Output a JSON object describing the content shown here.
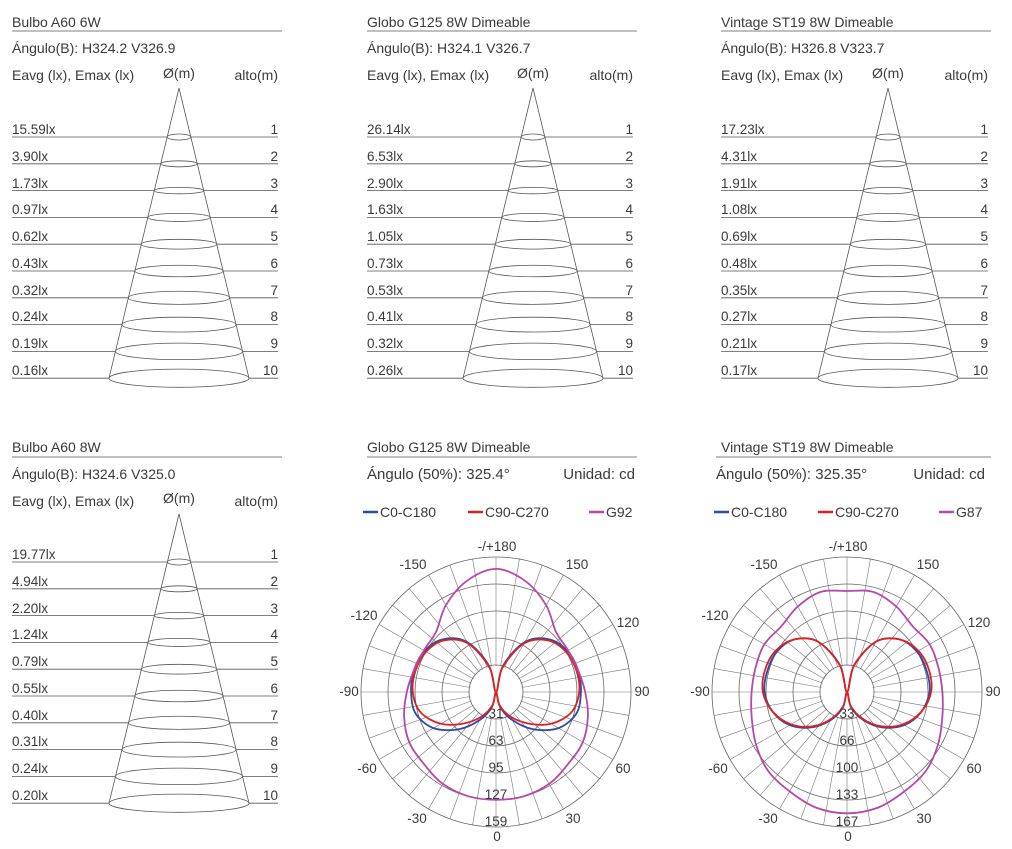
{
  "panels": [
    {
      "title": "Bulbo A60 6W",
      "angle": "Ángulo(B): H324.2 V326.9",
      "col_left": "Eavg (lx), Emax (lx)",
      "col_mid": "Ø(m)",
      "col_right": "alto(m)",
      "values": [
        "15.59lx",
        "3.90lx",
        "1.73lx",
        "0.97lx",
        "0.62lx",
        "0.43lx",
        "0.32lx",
        "0.24lx",
        "0.19lx",
        "0.16lx"
      ],
      "heights": [
        "1",
        "2",
        "3",
        "4",
        "5",
        "6",
        "7",
        "8",
        "9",
        "10"
      ]
    },
    {
      "title": "Globo G125 8W Dimeable",
      "angle": "Ángulo(B): H324.1 V326.7",
      "col_left": "Eavg (lx), Emax (lx)",
      "col_mid": "Ø(m)",
      "col_right": "alto(m)",
      "values": [
        "26.14lx",
        "6.53lx",
        "2.90lx",
        "1.63lx",
        "1.05lx",
        "0.73lx",
        "0.53lx",
        "0.41lx",
        "0.32lx",
        "0.26lx"
      ],
      "heights": [
        "1",
        "2",
        "3",
        "4",
        "5",
        "6",
        "7",
        "8",
        "9",
        "10"
      ]
    },
    {
      "title": "Vintage ST19 8W Dimeable",
      "angle": "Ángulo(B): H326.8 V323.7",
      "col_left": "Eavg (lx), Emax (lx)",
      "col_mid": "Ø(m)",
      "col_right": "alto(m)",
      "values": [
        "17.23lx",
        "4.31lx",
        "1.91lx",
        "1.08lx",
        "0.69lx",
        "0.48lx",
        "0.35lx",
        "0.27lx",
        "0.21lx",
        "0.17lx"
      ],
      "heights": [
        "1",
        "2",
        "3",
        "4",
        "5",
        "6",
        "7",
        "8",
        "9",
        "10"
      ]
    },
    {
      "title": "Bulbo A60 8W",
      "angle": "Ángulo(B): H324.6 V325.0",
      "col_left": "Eavg (lx), Emax (lx)",
      "col_mid": "Ø(m)",
      "col_right": "alto(m)",
      "values": [
        "19.77lx",
        "4.94lx",
        "2.20lx",
        "1.24lx",
        "0.79lx",
        "0.55lx",
        "0.40lx",
        "0.31lx",
        "0.24lx",
        "0.20lx"
      ],
      "heights": [
        "1",
        "2",
        "3",
        "4",
        "5",
        "6",
        "7",
        "8",
        "9",
        "10"
      ]
    }
  ],
  "polar_panels": [
    {
      "title": "Globo G125 8W Dimeable",
      "angle": "Ángulo (50%): 325.4°",
      "unit": "Unidad: cd",
      "legend": [
        "C0-C180",
        "C90-C270",
        "G92"
      ],
      "radial_labels": [
        "31",
        "63",
        "95",
        "127",
        "159"
      ],
      "angle_labels": [
        "-/+180",
        "150",
        "120",
        "90",
        "60",
        "30",
        "0",
        "-30",
        "-60",
        "-90",
        "-120",
        "-150"
      ]
    },
    {
      "title": "Vintage ST19 8W Dimeable",
      "angle": "Ángulo (50%): 325.35°",
      "unit": "Unidad: cd",
      "legend": [
        "C0-C180",
        "C90-C270",
        "G87"
      ],
      "radial_labels": [
        "33",
        "66",
        "100",
        "133",
        "167"
      ],
      "angle_labels": [
        "-/+180",
        "150",
        "120",
        "90",
        "60",
        "30",
        "0",
        "-30",
        "-60",
        "-90",
        "-120",
        "-150"
      ]
    }
  ],
  "chart_data": [
    {
      "type": "line",
      "title": "Globo G125 8W Dimeable",
      "coordinate_system": "polar",
      "unit": "cd",
      "r_ticks": [
        31,
        63,
        95,
        127,
        159
      ],
      "theta": [
        0,
        15,
        30,
        45,
        60,
        75,
        90,
        105,
        120,
        135,
        150,
        165,
        180,
        195,
        210,
        225,
        240,
        255,
        270,
        285,
        300,
        315,
        330,
        345
      ],
      "series": [
        {
          "name": "C0-C180",
          "color": "#2e4aa6",
          "values": [
            0,
            18,
            38,
            62,
            85,
            98,
            100,
            100,
            97,
            88,
            68,
            32,
            0,
            32,
            68,
            88,
            97,
            100,
            100,
            98,
            85,
            62,
            38,
            18
          ]
        },
        {
          "name": "C90-C270",
          "color": "#e02020",
          "values": [
            0,
            16,
            33,
            52,
            75,
            92,
            98,
            98,
            95,
            86,
            66,
            30,
            0,
            30,
            66,
            86,
            95,
            98,
            98,
            92,
            75,
            52,
            33,
            16
          ]
        },
        {
          "name": "G92",
          "color": "#b548a8",
          "values": [
            127,
            127,
            125,
            120,
            118,
            112,
            105,
            100,
            98,
            100,
            118,
            135,
            145,
            135,
            118,
            100,
            98,
            100,
            105,
            112,
            118,
            120,
            125,
            127
          ]
        }
      ]
    },
    {
      "type": "line",
      "title": "Vintage ST19 8W Dimeable",
      "coordinate_system": "polar",
      "unit": "cd",
      "r_ticks": [
        33,
        66,
        100,
        133,
        167
      ],
      "theta": [
        0,
        15,
        30,
        45,
        60,
        75,
        90,
        105,
        120,
        135,
        150,
        165,
        180,
        195,
        210,
        225,
        240,
        255,
        270,
        285,
        300,
        315,
        330,
        345
      ],
      "series": [
        {
          "name": "C0-C180",
          "color": "#2e4aa6",
          "values": [
            0,
            20,
            40,
            62,
            82,
            95,
            102,
            102,
            100,
            92,
            72,
            35,
            0,
            35,
            72,
            92,
            100,
            102,
            102,
            95,
            82,
            62,
            40,
            20
          ]
        },
        {
          "name": "C90-C270",
          "color": "#e02020",
          "values": [
            0,
            18,
            38,
            60,
            80,
            95,
            104,
            105,
            102,
            92,
            72,
            34,
            0,
            34,
            72,
            92,
            102,
            105,
            104,
            95,
            80,
            60,
            38,
            18
          ]
        },
        {
          "name": "G87",
          "color": "#b548a8",
          "values": [
            150,
            148,
            142,
            138,
            130,
            122,
            118,
            117,
            118,
            115,
            122,
            128,
            125,
            128,
            122,
            115,
            118,
            117,
            118,
            122,
            130,
            138,
            142,
            148
          ]
        }
      ]
    }
  ]
}
